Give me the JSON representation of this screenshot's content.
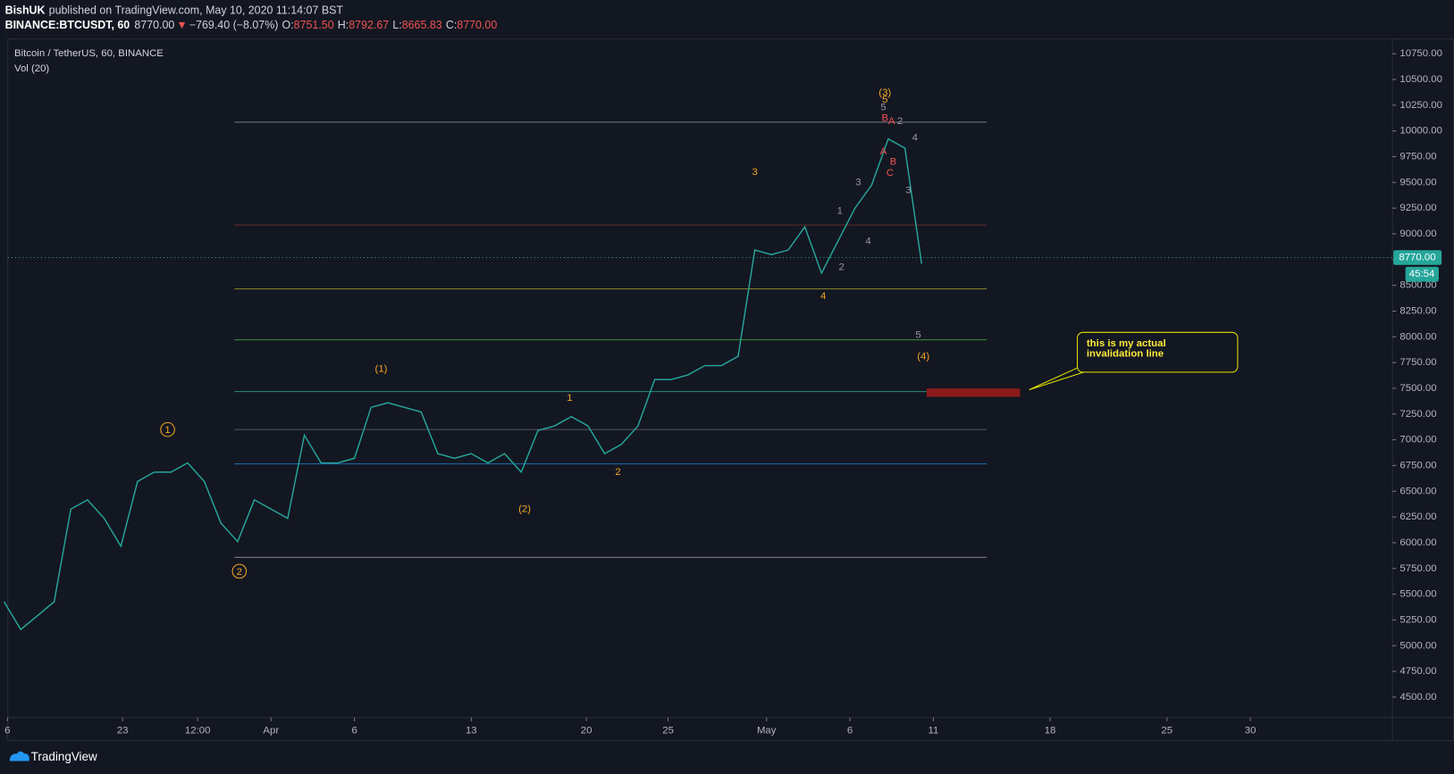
{
  "header": {
    "author": "BishUK",
    "published": "published on TradingView.com, May 10, 2020 11:14:07 BST",
    "symbol": "BINANCE:BTCUSDT, 60",
    "last": "8770.00",
    "arrow": "▼",
    "change": "−769.40 (−8.07%)",
    "ohlc": [
      {
        "label": "O:",
        "value": "8751.50"
      },
      {
        "label": "H:",
        "value": "8792.67"
      },
      {
        "label": "L:",
        "value": "8665.83"
      },
      {
        "label": "C:",
        "value": "8770.00"
      }
    ]
  },
  "footer": {
    "brand": "TradingView"
  },
  "callout": {
    "text": "this is my actual invalidation line"
  },
  "chart_data": {
    "type": "line",
    "title": "Bitcoin / TetherUS, 60, BINANCE",
    "subtitle": "Vol (20)",
    "color": "#26a69a",
    "x": [
      -16,
      -15,
      -14,
      -13,
      -12,
      -11,
      -10,
      -9,
      -8,
      -7,
      -6,
      -5,
      -4,
      -3,
      -2,
      -1,
      0,
      1,
      2,
      3,
      4,
      5,
      6,
      7,
      8,
      9,
      10,
      11,
      12,
      13,
      14,
      15,
      16,
      17,
      18,
      19,
      20,
      21,
      22,
      23,
      24,
      25,
      26,
      27,
      28,
      29,
      30,
      31,
      32,
      33,
      34,
      35,
      36,
      37,
      38,
      39
    ],
    "values": [
      5426,
      5157,
      5291,
      5426,
      6326,
      6416,
      6236,
      5966,
      6595,
      6685,
      6685,
      6775,
      6595,
      6191,
      6011,
      6416,
      6326,
      6236,
      7045,
      6775,
      6775,
      6820,
      7315,
      7360,
      7315,
      7270,
      6865,
      6820,
      6865,
      6775,
      6865,
      6685,
      7090,
      7135,
      7225,
      7135,
      6865,
      6955,
      7135,
      7585,
      7585,
      7630,
      7720,
      7720,
      7810,
      8844,
      8799,
      8844,
      9068,
      8619,
      8934,
      9248,
      9473,
      9923,
      9833,
      8709
    ],
    "xlim": [
      -15.78,
      67.22
    ],
    "ylim": [
      4302,
      10894
    ],
    "xticks": [
      {
        "value": -15.8,
        "label": "6"
      },
      {
        "value": -8.9,
        "label": "23"
      },
      {
        "value": -4.4,
        "label": "12:00"
      },
      {
        "value": 0,
        "label": "Apr"
      },
      {
        "value": 5,
        "label": "6"
      },
      {
        "value": 12,
        "label": "13"
      },
      {
        "value": 18.9,
        "label": "20"
      },
      {
        "value": 23.8,
        "label": "25"
      },
      {
        "value": 29.7,
        "label": "May"
      },
      {
        "value": 34.7,
        "label": "6"
      },
      {
        "value": 39.7,
        "label": "11"
      },
      {
        "value": 46.7,
        "label": "18"
      },
      {
        "value": 53.7,
        "label": "25"
      },
      {
        "value": 58.7,
        "label": "30"
      }
    ],
    "yticks": [
      {
        "value": 4500,
        "label": "4500.00"
      },
      {
        "value": 4750,
        "label": "4750.00"
      },
      {
        "value": 5000,
        "label": "5000.00"
      },
      {
        "value": 5250,
        "label": "5250.00"
      },
      {
        "value": 5500,
        "label": "5500.00"
      },
      {
        "value": 5750,
        "label": "5750.00"
      },
      {
        "value": 6000,
        "label": "6000.00"
      },
      {
        "value": 6250,
        "label": "6250.00"
      },
      {
        "value": 6500,
        "label": "6500.00"
      },
      {
        "value": 6750,
        "label": "6750.00"
      },
      {
        "value": 7000,
        "label": "7000.00"
      },
      {
        "value": 7250,
        "label": "7250.00"
      },
      {
        "value": 7500,
        "label": "7500.00"
      },
      {
        "value": 7750,
        "label": "7750.00"
      },
      {
        "value": 8000,
        "label": "8000.00"
      },
      {
        "value": 8250,
        "label": "8250.00"
      },
      {
        "value": 8500,
        "label": "8500.00"
      },
      {
        "value": 8750,
        "label": "8750.00"
      },
      {
        "value": 9000,
        "label": "9000.00"
      },
      {
        "value": 9250,
        "label": "9250.00"
      },
      {
        "value": 9500,
        "label": "9500.00"
      },
      {
        "value": 9750,
        "label": "9750.00"
      },
      {
        "value": 10000,
        "label": "10000.00"
      },
      {
        "value": 10250,
        "label": "10250.00"
      },
      {
        "value": 10500,
        "label": "10500.00"
      },
      {
        "value": 10750,
        "label": "10750.00"
      }
    ],
    "last_price": {
      "value": 8770,
      "label": "8770.00",
      "color": "#26a69a"
    },
    "countdown": "45:54",
    "levels_x": [
      -2.2,
      42.9
    ],
    "levels": [
      {
        "value": 10085,
        "color": "#787b86"
      },
      {
        "value": 9086,
        "color": "#5d2a2e"
      },
      {
        "value": 8466,
        "color": "#7a7a2a"
      },
      {
        "value": 7971,
        "color": "#388e3c"
      },
      {
        "value": 7468,
        "color": "#2a8a80"
      },
      {
        "value": 7099,
        "color": "#4a4e5a"
      },
      {
        "value": 6766,
        "color": "#1e6fb0"
      },
      {
        "value": 5858,
        "color": "#787b86"
      }
    ],
    "zone": {
      "x": [
        39.3,
        44.9
      ],
      "y": [
        7417,
        7498
      ],
      "color": "#8b1a1a"
    },
    "annotations": [
      {
        "text": "1",
        "x": -6.2,
        "y": 7099,
        "color": "#f5a623",
        "circle": true
      },
      {
        "text": "2",
        "x": -1.9,
        "y": 5723,
        "color": "#f5a623",
        "circle": true
      },
      {
        "text": "(1)",
        "x": 6.6,
        "y": 7693,
        "color": "#f5a623"
      },
      {
        "text": "(2)",
        "x": 15.2,
        "y": 6335,
        "color": "#f5a623"
      },
      {
        "text": "1",
        "x": 17.9,
        "y": 7414,
        "color": "#f5a623"
      },
      {
        "text": "2",
        "x": 20.8,
        "y": 6694,
        "color": "#f5a623"
      },
      {
        "text": "3",
        "x": 29,
        "y": 9608,
        "color": "#f5a623"
      },
      {
        "text": "4",
        "x": 33.1,
        "y": 8403,
        "color": "#f5a623"
      },
      {
        "text": "(3)",
        "x": 36.8,
        "y": 10381,
        "color": "#f5a623"
      },
      {
        "text": "(4)",
        "x": 39.1,
        "y": 7818,
        "color": "#f5a623"
      },
      {
        "text": "5",
        "x": 36.8,
        "y": 10309,
        "color": "#f5a623"
      },
      {
        "text": "5",
        "x": 38.8,
        "y": 8025,
        "color": "#9598a1"
      },
      {
        "text": "1",
        "x": 34.1,
        "y": 9230,
        "color": "#9598a1"
      },
      {
        "text": "2",
        "x": 34.2,
        "y": 8682,
        "color": "#9598a1"
      },
      {
        "text": "3",
        "x": 35.2,
        "y": 9509,
        "color": "#9598a1"
      },
      {
        "text": "4",
        "x": 35.8,
        "y": 8934,
        "color": "#9598a1"
      },
      {
        "text": "3",
        "x": 38.2,
        "y": 9428,
        "color": "#9598a1"
      },
      {
        "text": "4",
        "x": 38.6,
        "y": 9941,
        "color": "#9598a1"
      },
      {
        "text": "5",
        "x": 36.7,
        "y": 10237,
        "color": "#9598a1"
      },
      {
        "text": "B",
        "x": 36.8,
        "y": 10130,
        "color": "#ef5350"
      },
      {
        "text": "A",
        "x": 37.2,
        "y": 10103,
        "color": "#ef5350"
      },
      {
        "text": "2",
        "x": 37.7,
        "y": 10103,
        "color": "#9598a1"
      },
      {
        "text": "A",
        "x": 36.7,
        "y": 9806,
        "color": "#ef5350"
      },
      {
        "text": "B",
        "x": 37.3,
        "y": 9707,
        "color": "#ef5350"
      },
      {
        "text": "C",
        "x": 37.1,
        "y": 9599,
        "color": "#ef5350"
      }
    ]
  }
}
